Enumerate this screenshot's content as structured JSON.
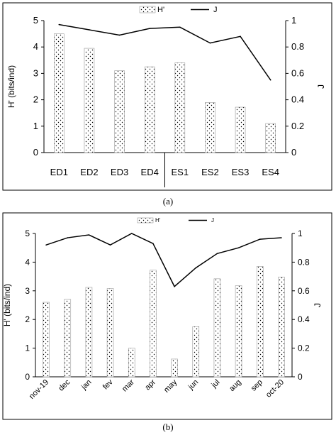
{
  "chart_data": [
    {
      "type": "bar",
      "panel": "a",
      "caption": "(a)",
      "categories": [
        "ED1",
        "ED2",
        "ED3",
        "ED4",
        "ES1",
        "ES2",
        "ES3",
        "ES4"
      ],
      "series": [
        {
          "name": "H'",
          "type": "bar",
          "axis": "left",
          "values": [
            4.5,
            3.95,
            3.1,
            3.25,
            3.4,
            1.9,
            1.72,
            1.1
          ]
        },
        {
          "name": "J",
          "type": "line",
          "axis": "right",
          "values": [
            0.97,
            0.93,
            0.89,
            0.94,
            0.95,
            0.83,
            0.88,
            0.55
          ]
        }
      ],
      "ylabel": "H' (bits/ind)",
      "y2label": "J",
      "ylim": [
        0,
        5
      ],
      "y2lim": [
        0,
        1
      ],
      "yticks": [
        "0",
        "1",
        "2",
        "3",
        "4",
        "5"
      ],
      "y2ticks": [
        "0",
        "0.2",
        "0.4",
        "0.6",
        "0.8",
        "1"
      ],
      "legend_position": "top-center",
      "grid": false,
      "group_separator_after_index": 3
    },
    {
      "type": "bar",
      "panel": "b",
      "caption": "(b)",
      "categories": [
        "nov-19",
        "dec",
        "jan",
        "fev",
        "mar",
        "apr",
        "may",
        "jun",
        "jul",
        "aug",
        "sep",
        "oct-20"
      ],
      "series": [
        {
          "name": "H'",
          "type": "bar",
          "axis": "left",
          "values": [
            2.6,
            2.7,
            3.12,
            3.08,
            1.0,
            3.72,
            0.62,
            1.75,
            3.42,
            3.18,
            3.85,
            3.48
          ]
        },
        {
          "name": "J",
          "type": "line",
          "axis": "right",
          "values": [
            0.92,
            0.97,
            0.99,
            0.92,
            1.0,
            0.93,
            0.63,
            0.76,
            0.86,
            0.9,
            0.96,
            0.97
          ]
        }
      ],
      "ylabel": "H' (bits/ind)",
      "y2label": "J",
      "ylim": [
        0,
        5
      ],
      "y2lim": [
        0,
        1
      ],
      "yticks": [
        "0",
        "1",
        "2",
        "3",
        "4",
        "5"
      ],
      "y2ticks": [
        "0",
        "0.2",
        "0.4",
        "0.6",
        "0.8",
        "1"
      ],
      "legend_position": "top-center",
      "grid": false
    }
  ]
}
